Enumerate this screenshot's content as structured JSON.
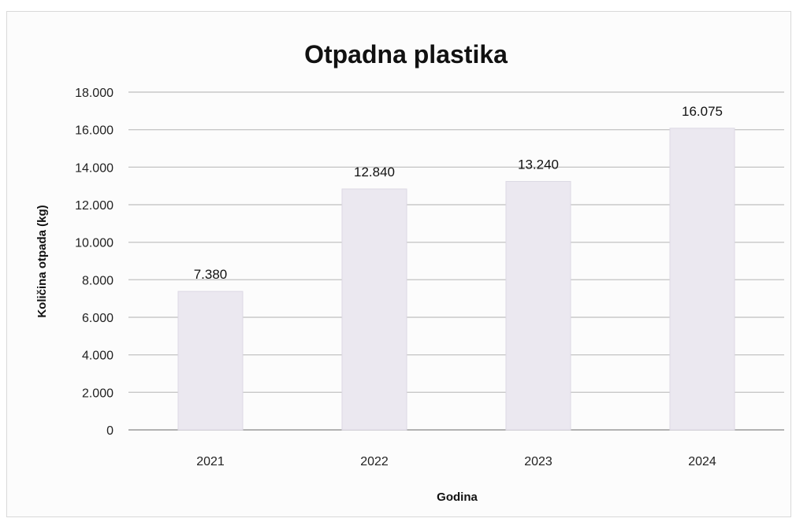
{
  "chart_data": {
    "type": "bar",
    "title": "Otpadna plastika",
    "xlabel": "Godina",
    "ylabel": "Količina otpada (kg)",
    "categories": [
      "2021",
      "2022",
      "2023",
      "2024"
    ],
    "values": [
      7380,
      12840,
      13240,
      16075
    ],
    "data_labels": [
      "7.380",
      "12.840",
      "13.240",
      "16.075"
    ],
    "ylim": [
      0,
      18000
    ],
    "yticks": [
      0,
      2000,
      4000,
      6000,
      8000,
      10000,
      12000,
      14000,
      16000,
      18000
    ],
    "ytick_labels": [
      "0",
      "2.000",
      "4.000",
      "6.000",
      "8.000",
      "10.000",
      "12.000",
      "14.000",
      "16.000",
      "18.000"
    ],
    "grid": true,
    "legend": "none",
    "colors": {
      "bar": "#ebe8f0",
      "bar_edge": "#dcd8e4"
    }
  }
}
